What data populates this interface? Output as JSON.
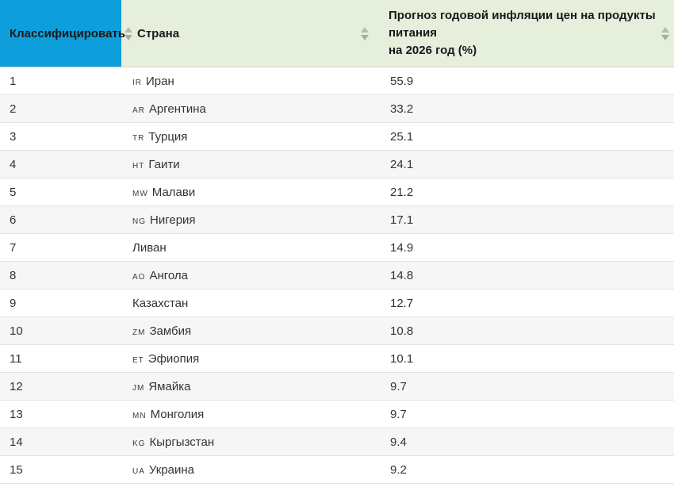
{
  "colors": {
    "rank_header_bg": "#0d9edb",
    "header_bg": "#e6eedc",
    "header_text": "#191919",
    "body_text": "#333333",
    "row_alt_bg": "#f6f6f6",
    "row_border": "#e3e3e3",
    "sort_arrow": "#aab3a0"
  },
  "header": {
    "rank_label": "Классифицировать",
    "country_label": "Страна",
    "forecast_lines": [
      "Прогноз годовой инфляции цен на продукты",
      "питания",
      "на 2026 год (%)"
    ],
    "sort_icon": "sort-arrows-icon"
  },
  "rows": [
    {
      "rank": "1",
      "code": "IR",
      "country": "Иран",
      "value": "55.9"
    },
    {
      "rank": "2",
      "code": "AR",
      "country": "Аргентина",
      "value": "33.2"
    },
    {
      "rank": "3",
      "code": "TR",
      "country": "Турция",
      "value": "25.1"
    },
    {
      "rank": "4",
      "code": "HT",
      "country": "Гаити",
      "value": "24.1"
    },
    {
      "rank": "5",
      "code": "MW",
      "country": "Малави",
      "value": "21.2"
    },
    {
      "rank": "6",
      "code": "NG",
      "country": "Нигерия",
      "value": "17.1"
    },
    {
      "rank": "7",
      "code": "",
      "country": "Ливан",
      "value": "14.9"
    },
    {
      "rank": "8",
      "code": "AO",
      "country": "Ангола",
      "value": "14.8"
    },
    {
      "rank": "9",
      "code": "",
      "country": "Казахстан",
      "value": "12.7"
    },
    {
      "rank": "10",
      "code": "ZM",
      "country": "Замбия",
      "value": "10.8"
    },
    {
      "rank": "11",
      "code": "ET",
      "country": "Эфиопия",
      "value": "10.1"
    },
    {
      "rank": "12",
      "code": "JM",
      "country": "Ямайка",
      "value": "9.7"
    },
    {
      "rank": "13",
      "code": "MN",
      "country": "Монголия",
      "value": "9.7"
    },
    {
      "rank": "14",
      "code": "KG",
      "country": "Кыргызстан",
      "value": "9.4"
    },
    {
      "rank": "15",
      "code": "UA",
      "country": "Украина",
      "value": "9.2"
    }
  ]
}
